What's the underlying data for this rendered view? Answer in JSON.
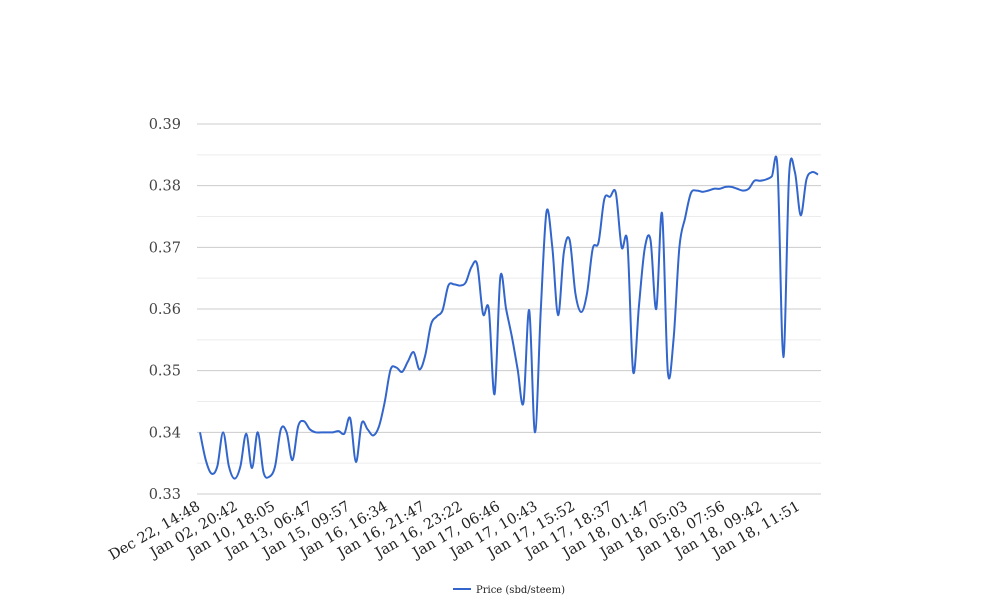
{
  "chart_data": {
    "type": "line",
    "title": "",
    "xlabel": "",
    "ylabel": "",
    "ylim": [
      0.33,
      0.39
    ],
    "yticks": [
      0.33,
      0.34,
      0.35,
      0.36,
      0.37,
      0.38,
      0.39
    ],
    "ytick_labels": [
      "0.33",
      "0.34",
      "0.35",
      "0.36",
      "0.37",
      "0.38",
      "0.39"
    ],
    "grid": true,
    "legend_position": "bottom",
    "xtick_labels": [
      "Dec 22, 14:48",
      "Jan 02, 20:42",
      "Jan 10, 18:05",
      "Jan 13, 06:47",
      "Jan 15, 09:57",
      "Jan 16, 16:34",
      "Jan 16, 21:47",
      "Jan 16, 23:22",
      "Jan 17, 06:46",
      "Jan 17, 10:43",
      "Jan 17, 15:52",
      "Jan 17, 18:37",
      "Jan 18, 01:47",
      "Jan 18, 05:03",
      "Jan 18, 07:56",
      "Jan 18, 09:42",
      "Jan 18, 11:51"
    ],
    "series": [
      {
        "name": "Price (sbd/steem)",
        "color": "#3366cc",
        "values": [
          0.34,
          0.3355,
          0.3333,
          0.3345,
          0.34,
          0.3345,
          0.3325,
          0.3345,
          0.3398,
          0.3342,
          0.34,
          0.3335,
          0.3328,
          0.3345,
          0.3405,
          0.34,
          0.3355,
          0.341,
          0.3418,
          0.3405,
          0.34,
          0.34,
          0.34,
          0.34,
          0.3402,
          0.3398,
          0.3423,
          0.3352,
          0.3415,
          0.3405,
          0.3395,
          0.341,
          0.345,
          0.3502,
          0.3505,
          0.3498,
          0.3515,
          0.353,
          0.3502,
          0.3525,
          0.3575,
          0.3588,
          0.3598,
          0.3638,
          0.364,
          0.3638,
          0.3643,
          0.3668,
          0.3672,
          0.3592,
          0.36,
          0.3462,
          0.3652,
          0.36,
          0.3555,
          0.3502,
          0.3448,
          0.3598,
          0.34,
          0.3598,
          0.3758,
          0.37,
          0.359,
          0.3692,
          0.3712,
          0.3625,
          0.3595,
          0.3625,
          0.3698,
          0.3708,
          0.3778,
          0.3782,
          0.3788,
          0.37,
          0.3708,
          0.3498,
          0.3605,
          0.3698,
          0.3712,
          0.36,
          0.3755,
          0.3498,
          0.3552,
          0.37,
          0.3748,
          0.3788,
          0.3792,
          0.379,
          0.3792,
          0.3795,
          0.3795,
          0.3798,
          0.3798,
          0.3795,
          0.3792,
          0.3795,
          0.3808,
          0.3808,
          0.381,
          0.3815,
          0.3828,
          0.3522,
          0.3818,
          0.3822,
          0.3752,
          0.381,
          0.3822,
          0.3818
        ]
      }
    ]
  }
}
